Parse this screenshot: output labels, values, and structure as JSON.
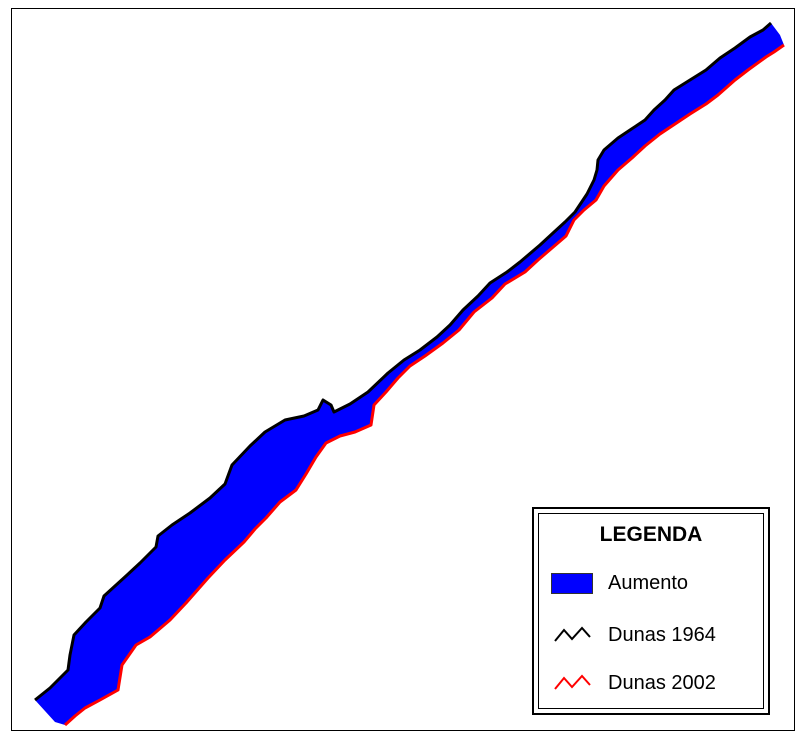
{
  "legend": {
    "title": "LEGENDA",
    "items": [
      {
        "label": "Aumento",
        "kind": "area",
        "color": "#0000ff"
      },
      {
        "label": "Dunas 1964",
        "kind": "line",
        "color": "#000000"
      },
      {
        "label": "Dunas 2002",
        "kind": "line",
        "color": "#ff0000"
      }
    ]
  }
}
